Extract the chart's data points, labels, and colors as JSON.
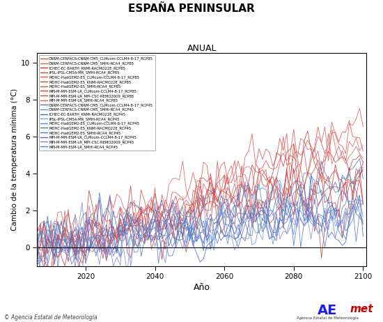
{
  "title": "ESPAÑA PENINSULAR",
  "subtitle": "ANUAL",
  "xlabel": "Año",
  "ylabel": "Cambio de la temperatura mínima (°C)",
  "xlim": [
    2006,
    2101
  ],
  "ylim": [
    -1.0,
    10.5
  ],
  "yticks": [
    0,
    2,
    4,
    6,
    8,
    10
  ],
  "xticks": [
    2020,
    2040,
    2060,
    2080,
    2100
  ],
  "footer_left": "© Agencia Estatal de Meteorología",
  "rcp85_colors": [
    "#e05050",
    "#e06060",
    "#cc3535",
    "#d04040",
    "#e05555",
    "#cc4545",
    "#d05050",
    "#e03535",
    "#c04545",
    "#d06565"
  ],
  "rcp45_colors": [
    "#5577cc",
    "#6688dd",
    "#4466bb",
    "#7799dd",
    "#5588cc",
    "#4477bb",
    "#6677cc",
    "#5566bb",
    "#7788dd",
    "#4488cc"
  ],
  "rcp85_labels": [
    "CNRM-CERFACS-CNRM-CM5_CLMcom-CCLM4-8-17_RCP85",
    "CNRM-CERFACS-CNRM-CM5_SMHI-RCA4_RCP85",
    "ICHEC-EC-EARTH_KNMI-RACMO22E_RCP85",
    "IPSL-IPSL-CM5A-MR_SMHI-RCA4_RCP85",
    "MOHC-HadGEM2-ES_CLMcom-CCLM4-8-17_RCP85",
    "MOHC-HadGEM2-ES_KNMI-RACMO22E_RCP85",
    "MOHC-HadGEM2-ES_SMHI-RCA4_RCP85",
    "MPI-M-MPI-ESM-LR_CLMcom-CCLM4-8-17_RCP85",
    "MPI-M-MPI-ESM-LR_MPI-CSC-REMO2009_RCP85",
    "MPI-M-MPI-ESM-LR_SMHI-RCA4_RCP85"
  ],
  "rcp45_labels": [
    "CNRM-CERFACS-CNRM-CM5_CLMcom-CCLM4-8-17_RCP45",
    "CNRM-CERFACS-CNRM-CM5_SMHI-RCA4_RCP45",
    "ICHEC-EC-EARTH_KNMI-RACMO22E_RCP45",
    "IPSL-IPSL-CM5A-MR_SMHI-RCA4_RCP45",
    "MOHC-HadGEM2-ES_CLMcom-CCLM4-8-17_RCP45",
    "MOHC-HadGEM2-ES_KNMI-RACMO22E_RCP45",
    "MOHC-HadGEM2-ES_SMHI-RCA4_RCP45",
    "MPI-M-MPI-ESM-LR_CLMcom-CCLM4-8-17_RCP45",
    "MPI-M-MPI-ESM-LR_MPI-CSC-REMO2009_RCP45",
    "MPI-M-MPI-ESM-LR_SMHI-RCA4_RCP45"
  ],
  "n_rcp85": 10,
  "n_rcp45": 10,
  "start_year": 2006,
  "end_year": 2100,
  "fig_width": 5.5,
  "fig_height": 4.62,
  "dpi": 100
}
